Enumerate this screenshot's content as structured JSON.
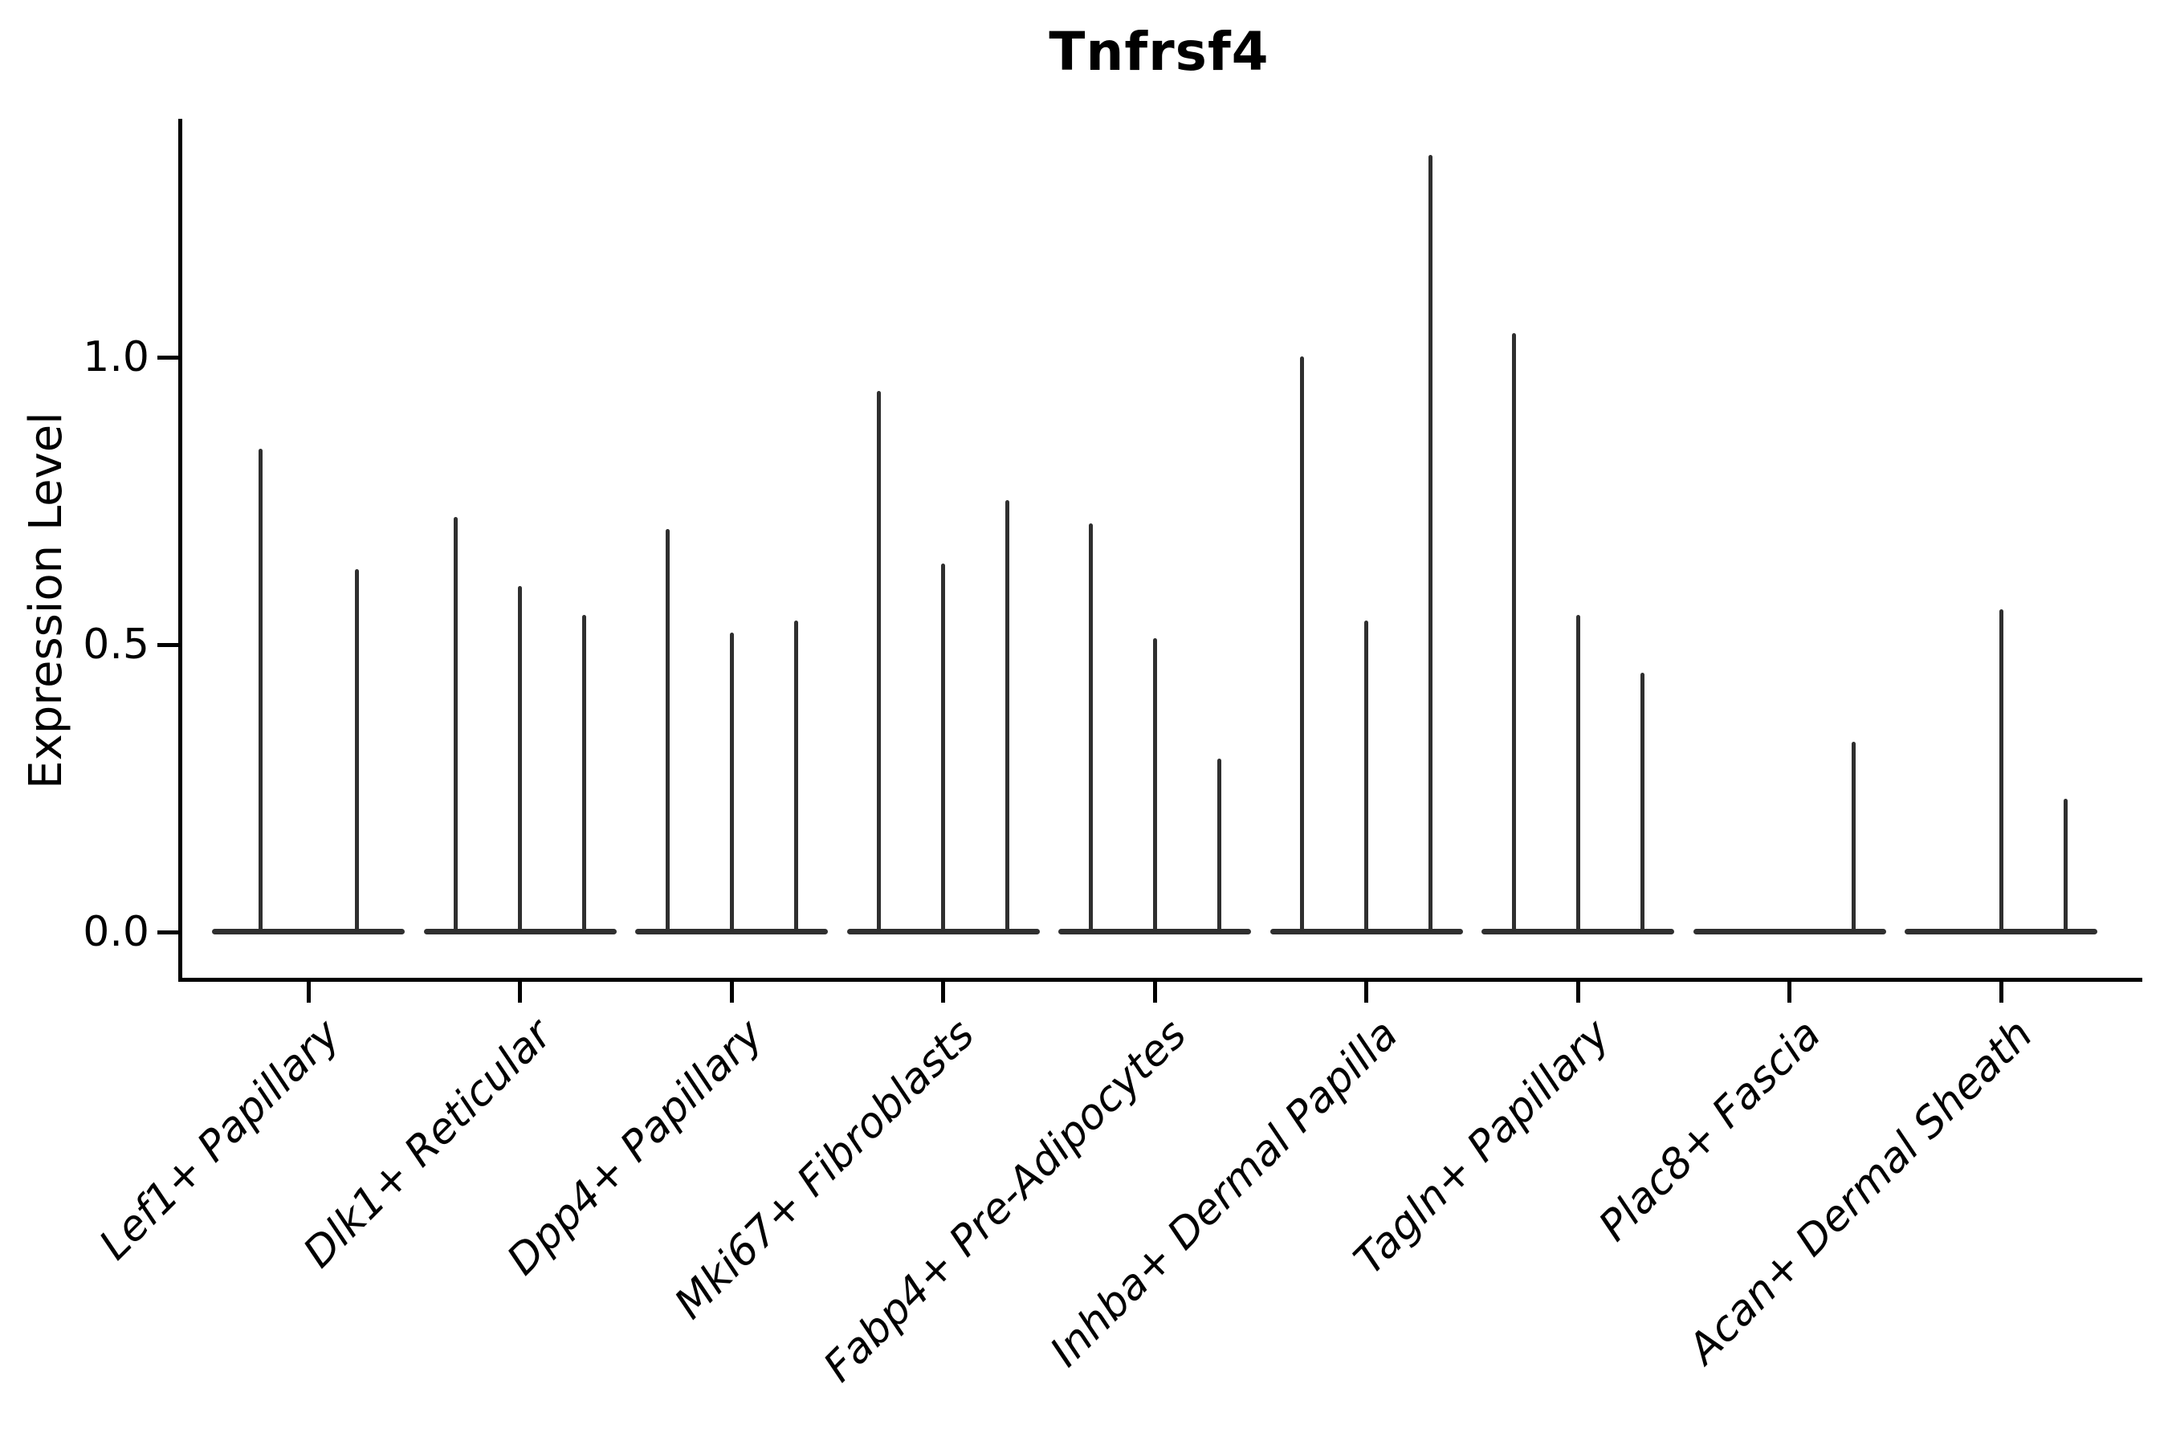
{
  "chart_data": {
    "type": "violin",
    "title": "Tnfrsf4",
    "ylabel": "Expression Level",
    "xlabel": "",
    "yticks": [
      "0.0",
      "0.5",
      "1.0"
    ],
    "ytick_values": [
      0.0,
      0.5,
      1.0
    ],
    "ylim": [
      -0.08,
      1.41
    ],
    "grid": false,
    "legend": false,
    "violin_color": "#2f2f2f",
    "axis_color": "#000000",
    "categories": [
      "Lef1+ Papillary",
      "Dlk1+ Reticular",
      "Dpp4+ Papillary",
      "Mki67+ Fibroblasts",
      "Fabp4+ Pre-Adipocytes",
      "Inhba+ Dermal Papilla",
      "Tagln+ Papillary",
      "Plac8+ Fascia",
      "Acan+ Dermal Sheath"
    ],
    "groups": [
      {
        "label": "Lef1+ Papillary",
        "violin_maxima": [
          0.84,
          0.63
        ]
      },
      {
        "label": "Dlk1+ Reticular",
        "violin_maxima": [
          0.72,
          0.6,
          0.55
        ]
      },
      {
        "label": "Dpp4+ Papillary",
        "violin_maxima": [
          0.7,
          0.52,
          0.54
        ]
      },
      {
        "label": "Mki67+ Fibroblasts",
        "violin_maxima": [
          0.94,
          0.64,
          0.75
        ]
      },
      {
        "label": "Fabp4+ Pre-Adipocytes",
        "violin_maxima": [
          0.71,
          0.51,
          0.3
        ]
      },
      {
        "label": "Inhba+ Dermal Papilla",
        "violin_maxima": [
          1.0,
          0.54,
          1.35
        ]
      },
      {
        "label": "Tagln+ Papillary",
        "violin_maxima": [
          1.04,
          0.55,
          0.45
        ]
      },
      {
        "label": "Plac8+ Fascia",
        "violin_maxima": [
          0.0,
          0.0,
          0.33
        ]
      },
      {
        "label": "Acan+ Dermal Sheath",
        "violin_maxima": [
          0.0,
          0.56,
          0.23
        ]
      }
    ]
  }
}
